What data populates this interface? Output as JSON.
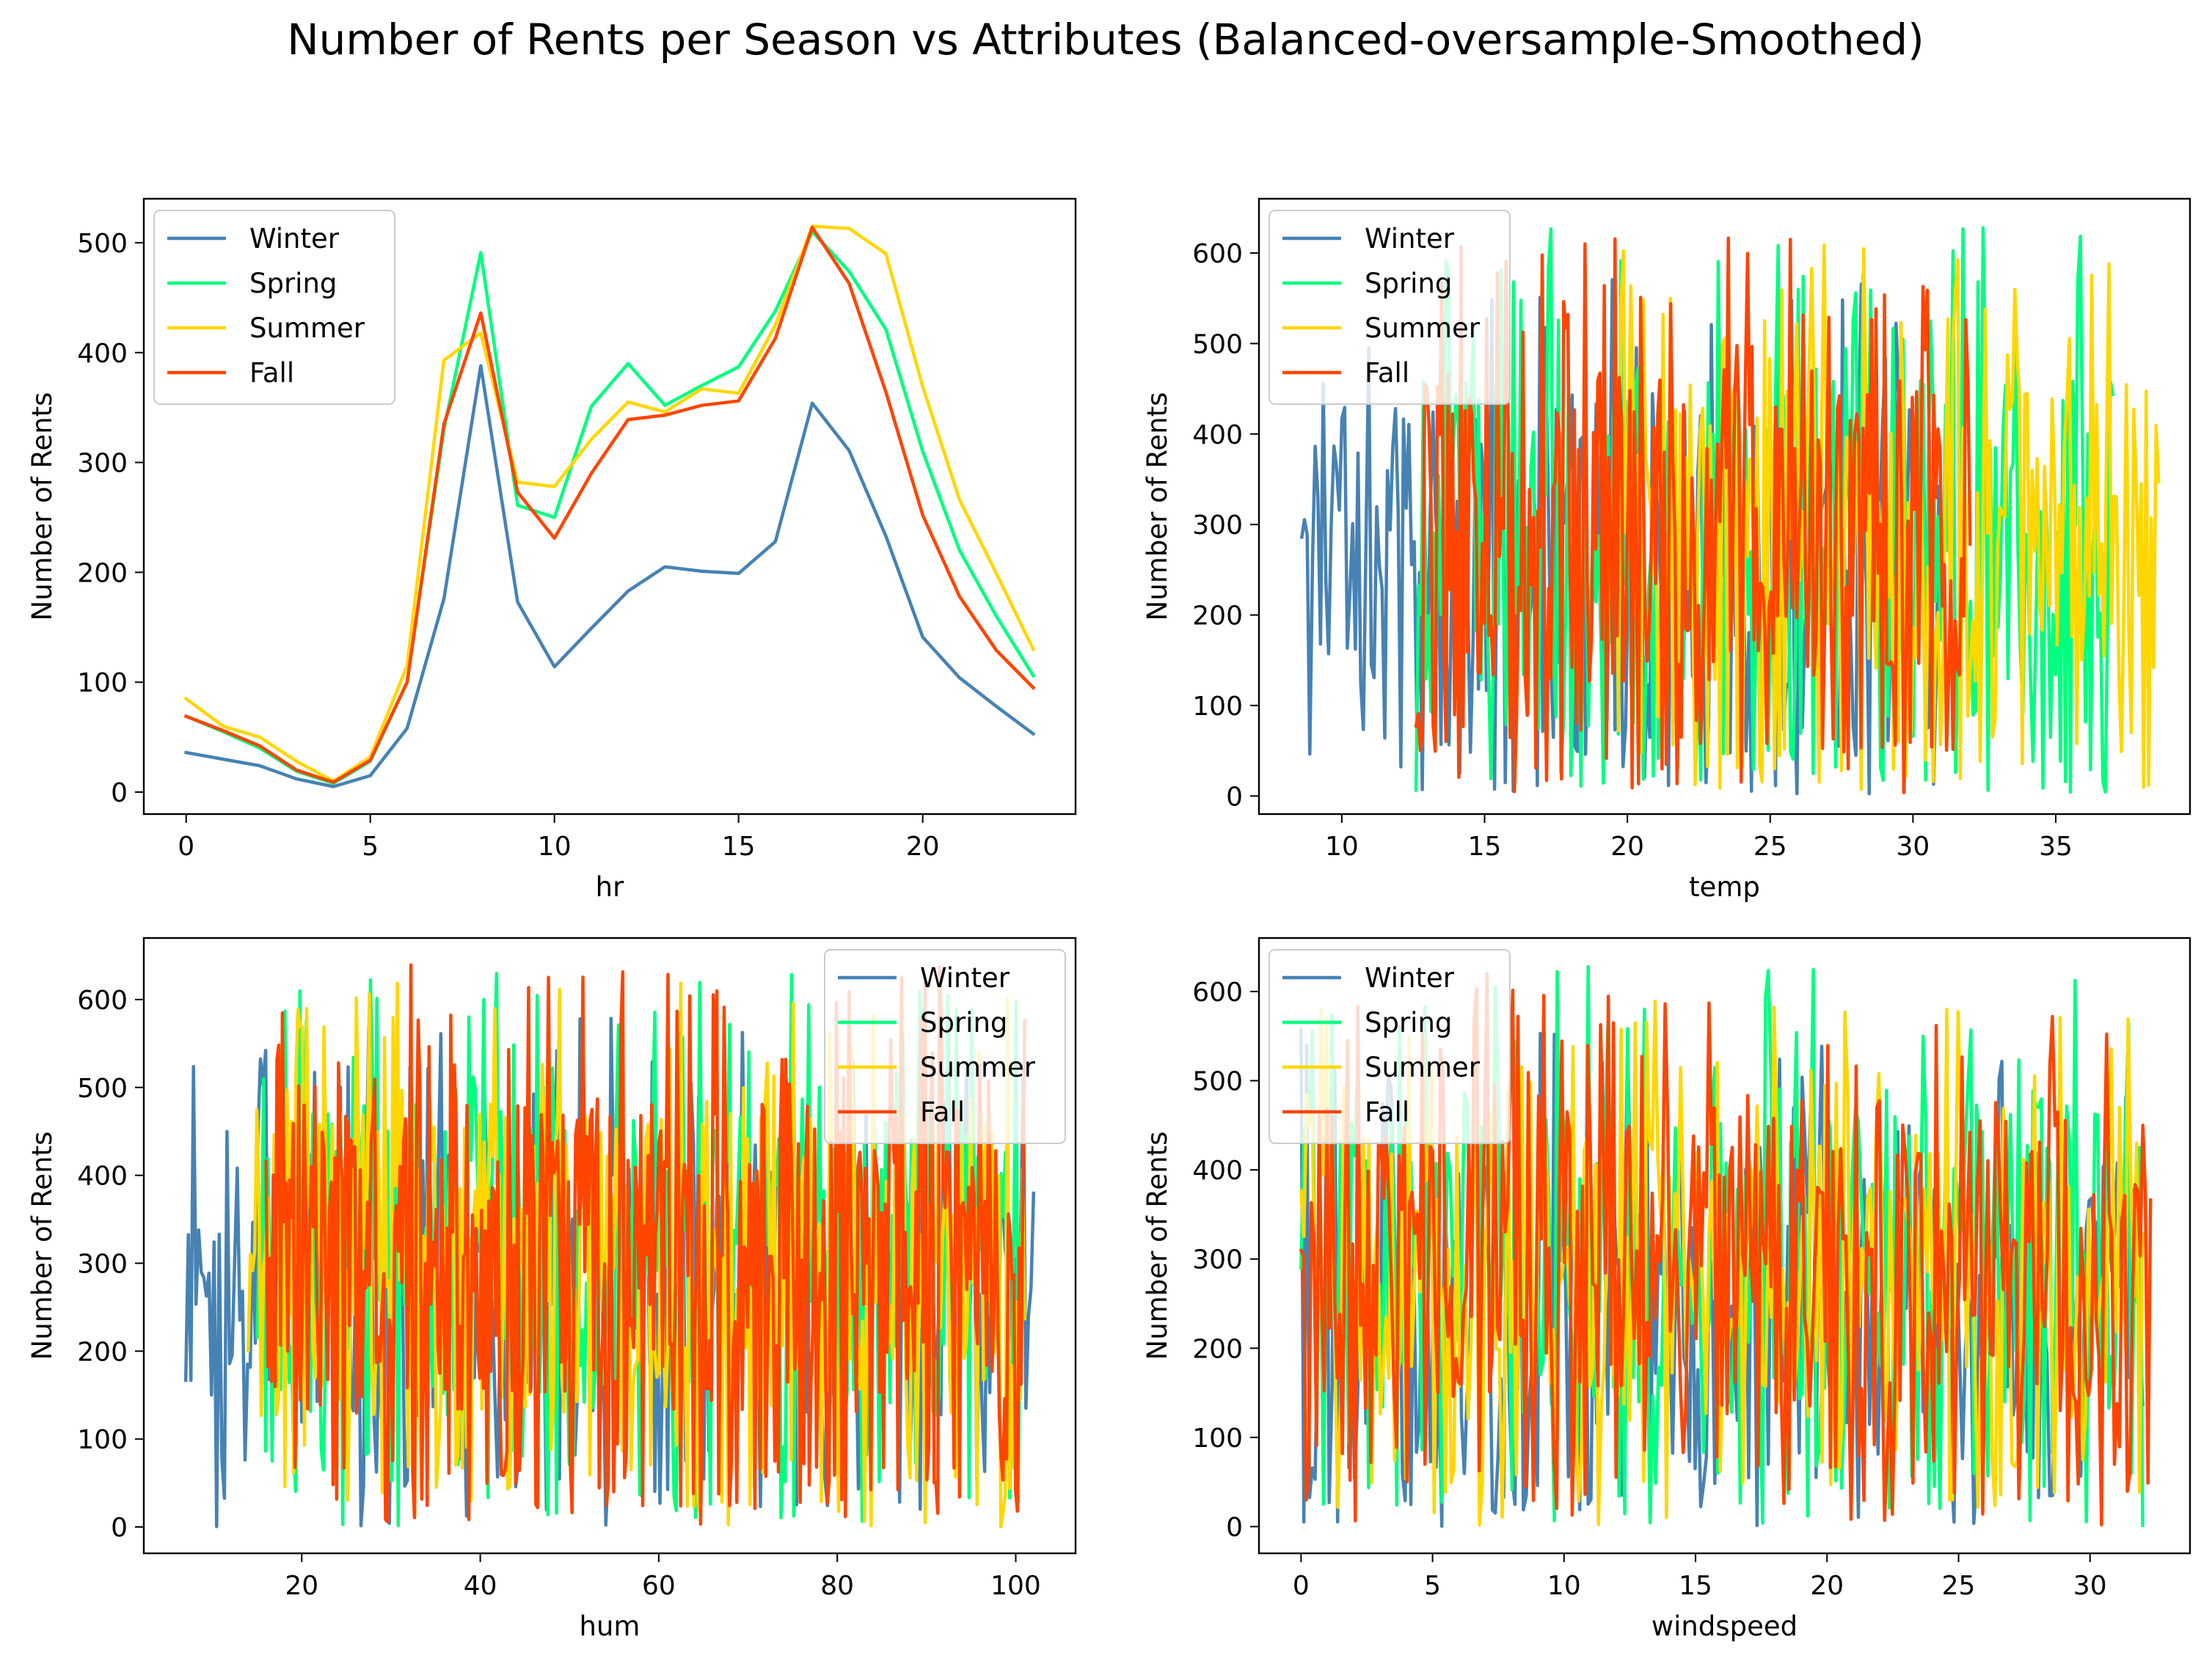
{
  "figure": {
    "title": "Number of Rents per Season vs Attributes (Balanced-oversample-Smoothed)"
  },
  "colors": {
    "Winter": "#4682b4",
    "Spring": "#00ff7f",
    "Summer": "#ffd700",
    "Fall": "#ff4500"
  },
  "chart_data": [
    {
      "type": "line",
      "xlabel": "hr",
      "ylabel": "Number of Rents",
      "xlim": [
        -1.15,
        24.15
      ],
      "ylim": [
        -20,
        540
      ],
      "xticks": [
        0,
        5,
        10,
        15,
        20
      ],
      "yticks": [
        0,
        100,
        200,
        300,
        400,
        500
      ],
      "legend_position": "upper left",
      "x": [
        0,
        1,
        2,
        3,
        4,
        5,
        6,
        7,
        8,
        9,
        10,
        11,
        12,
        13,
        14,
        15,
        16,
        17,
        18,
        19,
        20,
        21,
        22,
        23
      ],
      "series": [
        {
          "name": "Winter",
          "values": [
            36,
            30,
            24,
            12,
            5,
            15,
            58,
            176,
            388,
            173,
            114,
            149,
            183,
            205,
            201,
            199,
            228,
            354,
            311,
            233,
            141,
            104,
            78,
            53
          ]
        },
        {
          "name": "Spring",
          "values": [
            69,
            55,
            40,
            19,
            8,
            28,
            100,
            330,
            491,
            261,
            250,
            351,
            390,
            352,
            370,
            387,
            438,
            510,
            474,
            421,
            310,
            220,
            160,
            106
          ]
        },
        {
          "name": "Summer",
          "values": [
            85,
            60,
            50,
            28,
            10,
            32,
            115,
            393,
            418,
            282,
            278,
            321,
            355,
            346,
            367,
            363,
            425,
            515,
            513,
            490,
            369,
            266,
            199,
            130
          ]
        },
        {
          "name": "Fall",
          "values": [
            69,
            56,
            42,
            20,
            9,
            29,
            100,
            335,
            436,
            273,
            231,
            290,
            339,
            343,
            352,
            356,
            413,
            514,
            463,
            364,
            252,
            178,
            129,
            95
          ]
        }
      ]
    },
    {
      "type": "line",
      "xlabel": "temp",
      "ylabel": "Number of Rents",
      "xlim": [
        7.1,
        39.7
      ],
      "ylim": [
        -20,
        660
      ],
      "xticks": [
        10,
        15,
        20,
        25,
        30,
        35
      ],
      "yticks": [
        0,
        100,
        200,
        300,
        400,
        500,
        600
      ],
      "legend_position": "upper left",
      "noisy": true,
      "series": [
        {
          "name": "Winter",
          "xrange": [
            8.6,
            31
          ],
          "n": 240,
          "range": [
            0,
            582
          ],
          "seed": 11
        },
        {
          "name": "Spring",
          "xrange": [
            12.6,
            37
          ],
          "n": 280,
          "range": [
            0,
            632
          ],
          "seed": 23
        },
        {
          "name": "Summer",
          "xrange": [
            19.6,
            38.6
          ],
          "n": 220,
          "range": [
            5,
            610
          ],
          "seed": 37
        },
        {
          "name": "Fall",
          "xrange": [
            12.6,
            32
          ],
          "n": 260,
          "range": [
            0,
            628
          ],
          "seed": 53
        }
      ]
    },
    {
      "type": "line",
      "xlabel": "hum",
      "ylabel": "Number of Rents",
      "xlim": [
        2.3,
        106.7
      ],
      "ylim": [
        -30,
        670
      ],
      "xticks": [
        20,
        40,
        60,
        80,
        100
      ],
      "yticks": [
        0,
        100,
        200,
        300,
        400,
        500,
        600
      ],
      "legend_position": "upper right",
      "noisy": true,
      "series": [
        {
          "name": "Winter",
          "xrange": [
            7,
            102
          ],
          "n": 330,
          "range": [
            0,
            580
          ],
          "seed": 71
        },
        {
          "name": "Spring",
          "xrange": [
            15,
            101
          ],
          "n": 360,
          "range": [
            0,
            632
          ],
          "seed": 83
        },
        {
          "name": "Summer",
          "xrange": [
            14,
            101
          ],
          "n": 360,
          "range": [
            0,
            625
          ],
          "seed": 97
        },
        {
          "name": "Fall",
          "xrange": [
            16,
            101
          ],
          "n": 420,
          "range": [
            0,
            641
          ],
          "seed": 109
        }
      ]
    },
    {
      "type": "line",
      "xlabel": "windspeed",
      "ylabel": "Number of Rents",
      "xlim": [
        -1.6,
        33.8
      ],
      "ylim": [
        -30,
        660
      ],
      "xticks": [
        0,
        5,
        10,
        15,
        20,
        25,
        30
      ],
      "yticks": [
        0,
        100,
        200,
        300,
        400,
        500,
        600
      ],
      "legend_position": "upper left",
      "noisy": true,
      "series": [
        {
          "name": "Winter",
          "xrange": [
            0,
            32
          ],
          "n": 300,
          "range": [
            0,
            560
          ],
          "seed": 131
        },
        {
          "name": "Spring",
          "xrange": [
            0,
            32
          ],
          "n": 300,
          "range": [
            0,
            632
          ],
          "seed": 149
        },
        {
          "name": "Summer",
          "xrange": [
            0,
            32.2
          ],
          "n": 300,
          "range": [
            0,
            590
          ],
          "seed": 163
        },
        {
          "name": "Fall",
          "xrange": [
            0,
            32.3
          ],
          "n": 330,
          "range": [
            0,
            620
          ],
          "seed": 181
        }
      ]
    }
  ]
}
